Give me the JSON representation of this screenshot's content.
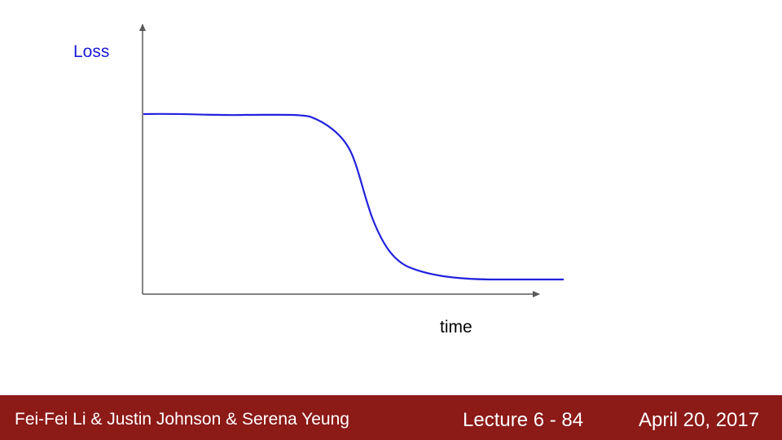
{
  "axis_labels": {
    "y": "Loss",
    "x": "time"
  },
  "footer": {
    "authors": "Fei-Fei Li & Justin Johnson & Serena Yeung",
    "lecture": "Lecture 6 - 84",
    "date": "April 20, 2017"
  }
}
